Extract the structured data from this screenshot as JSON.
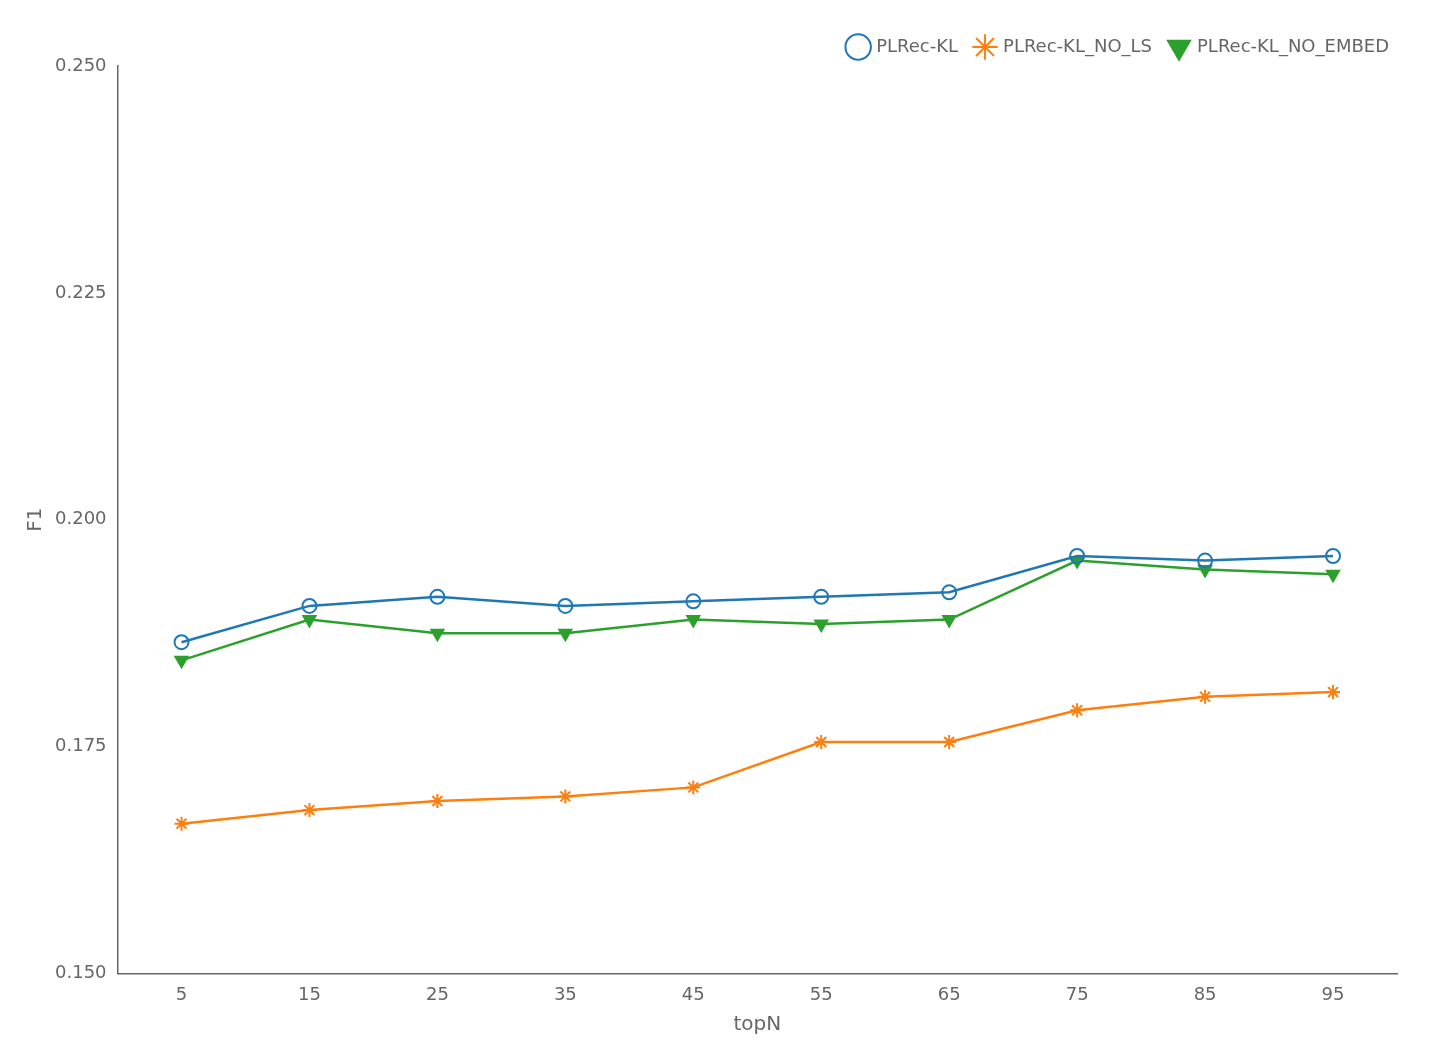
{
  "chart_data": {
    "type": "line",
    "x": [
      5,
      15,
      25,
      35,
      45,
      55,
      65,
      75,
      85,
      95
    ],
    "series": [
      {
        "name": "PLRec-KL",
        "color": "#1f77b4",
        "marker": "circle",
        "values": [
          0.1865,
          0.1905,
          0.1915,
          0.1905,
          0.191,
          0.1915,
          0.192,
          0.196,
          0.1955,
          0.196
        ]
      },
      {
        "name": "PLRec-KL_NO_LS",
        "color": "#ff7f0e",
        "marker": "star",
        "values": [
          0.1665,
          0.168,
          0.169,
          0.1695,
          0.1705,
          0.1755,
          0.1755,
          0.179,
          0.1805,
          0.181
        ]
      },
      {
        "name": "PLRec-KL_NO_EMBED",
        "color": "#2ca02c",
        "marker": "triangle-down",
        "values": [
          0.1845,
          0.189,
          0.1875,
          0.1875,
          0.189,
          0.1885,
          0.189,
          0.1955,
          0.1945,
          0.194
        ]
      }
    ],
    "xlabel": "topN",
    "ylabel": "F1",
    "xlim": [
      0,
      100
    ],
    "xticks": [
      5,
      15,
      25,
      35,
      45,
      55,
      65,
      75,
      85,
      95
    ],
    "ylim": [
      0.15,
      0.25
    ],
    "yticks": [
      {
        "value": 0.15,
        "label": "0.150"
      },
      {
        "value": 0.175,
        "label": "0.175"
      },
      {
        "value": 0.2,
        "label": "0.200"
      },
      {
        "value": 0.225,
        "label": "0.225"
      },
      {
        "value": 0.25,
        "label": "0.250"
      }
    ],
    "grid": false,
    "legend": "upper right"
  }
}
